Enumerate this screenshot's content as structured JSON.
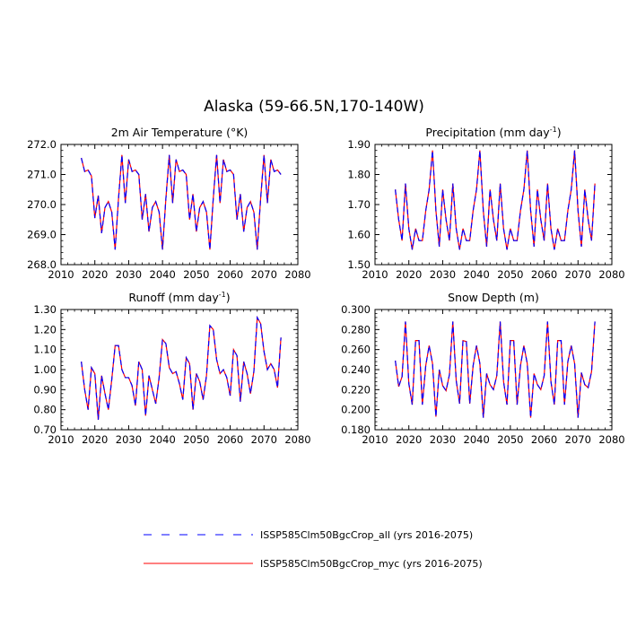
{
  "title": "Alaska (59-66.5N,170-140W)",
  "colors": {
    "series_all": "#0000ff",
    "series_myc": "#ff0000"
  },
  "legend": [
    {
      "label": "ISSP585Clm50BgcCrop_all (yrs 2016-2075)",
      "style": "dashed",
      "color": "#0000ff"
    },
    {
      "label": "ISSP585Clm50BgcCrop_myc (yrs 2016-2075)",
      "style": "solid",
      "color": "#ff0000"
    }
  ],
  "chart_data": [
    {
      "type": "line",
      "title": "2m Air Temperature (°K)",
      "x": [
        2016,
        2017,
        2018,
        2019,
        2020,
        2021,
        2022,
        2023,
        2024,
        2025,
        2026,
        2027,
        2028,
        2029,
        2030,
        2031,
        2032,
        2033,
        2034,
        2035,
        2036,
        2037,
        2038,
        2039,
        2040,
        2041,
        2042,
        2043,
        2044,
        2045,
        2046,
        2047,
        2048,
        2049,
        2050,
        2051,
        2052,
        2053,
        2054,
        2055,
        2056,
        2057,
        2058,
        2059,
        2060,
        2061,
        2062,
        2063,
        2064,
        2065,
        2066,
        2067,
        2068,
        2069,
        2070,
        2071,
        2072,
        2073,
        2074,
        2075
      ],
      "series": [
        {
          "values": [
            271.55,
            271.1,
            271.15,
            270.95,
            269.55,
            270.3,
            269.05,
            269.9,
            270.1,
            269.75,
            268.5,
            270.2,
            271.65,
            270.05,
            271.5,
            271.1,
            271.15,
            271.0,
            269.5,
            270.35,
            269.1,
            269.9,
            270.1,
            269.75,
            268.5,
            270.2,
            271.65,
            270.05,
            271.5,
            271.1,
            271.15,
            271.0,
            269.5,
            270.35,
            269.1,
            269.9,
            270.1,
            269.75,
            268.5,
            270.2,
            271.65,
            270.05,
            271.5,
            271.1,
            271.15,
            271.0,
            269.5,
            270.35,
            269.1,
            269.9,
            270.1,
            269.75,
            268.5,
            270.2,
            271.65,
            270.05,
            271.5,
            271.1,
            271.15,
            271.0
          ]
        }
      ],
      "xlim": [
        2010,
        2080
      ],
      "xticks": [
        "2010",
        "2020",
        "2030",
        "2040",
        "2050",
        "2060",
        "2070",
        "2080"
      ],
      "ylim": [
        268.0,
        272.0
      ],
      "yticks": [
        "268.0",
        "269.0",
        "270.0",
        "271.0",
        "272.0"
      ]
    },
    {
      "type": "line",
      "title": "Precipitation (mm day",
      "title_sup": "-1",
      "title_end": ")",
      "x": [
        2016,
        2017,
        2018,
        2019,
        2020,
        2021,
        2022,
        2023,
        2024,
        2025,
        2026,
        2027,
        2028,
        2029,
        2030,
        2031,
        2032,
        2033,
        2034,
        2035,
        2036,
        2037,
        2038,
        2039,
        2040,
        2041,
        2042,
        2043,
        2044,
        2045,
        2046,
        2047,
        2048,
        2049,
        2050,
        2051,
        2052,
        2053,
        2054,
        2055,
        2056,
        2057,
        2058,
        2059,
        2060,
        2061,
        2062,
        2063,
        2064,
        2065,
        2066,
        2067,
        2068,
        2069,
        2070,
        2071,
        2072,
        2073,
        2074,
        2075
      ],
      "series": [
        {
          "values": [
            1.75,
            1.65,
            1.58,
            1.77,
            1.62,
            1.55,
            1.62,
            1.58,
            1.58,
            1.68,
            1.75,
            1.88,
            1.68,
            1.56,
            1.75,
            1.65,
            1.58,
            1.77,
            1.62,
            1.55,
            1.62,
            1.58,
            1.58,
            1.68,
            1.75,
            1.88,
            1.68,
            1.56,
            1.75,
            1.65,
            1.58,
            1.77,
            1.62,
            1.55,
            1.62,
            1.58,
            1.58,
            1.68,
            1.75,
            1.88,
            1.68,
            1.56,
            1.75,
            1.65,
            1.58,
            1.77,
            1.62,
            1.55,
            1.62,
            1.58,
            1.58,
            1.68,
            1.75,
            1.88,
            1.68,
            1.56,
            1.75,
            1.65,
            1.58,
            1.77
          ]
        }
      ],
      "xlim": [
        2010,
        2080
      ],
      "xticks": [
        "2010",
        "2020",
        "2030",
        "2040",
        "2050",
        "2060",
        "2070",
        "2080"
      ],
      "ylim": [
        1.5,
        1.9
      ],
      "yticks": [
        "1.50",
        "1.60",
        "1.70",
        "1.80",
        "1.90"
      ]
    },
    {
      "type": "line",
      "title": "Runoff (mm day",
      "title_sup": "-1",
      "title_end": ")",
      "x": [
        2016,
        2017,
        2018,
        2019,
        2020,
        2021,
        2022,
        2023,
        2024,
        2025,
        2026,
        2027,
        2028,
        2029,
        2030,
        2031,
        2032,
        2033,
        2034,
        2035,
        2036,
        2037,
        2038,
        2039,
        2040,
        2041,
        2042,
        2043,
        2044,
        2045,
        2046,
        2047,
        2048,
        2049,
        2050,
        2051,
        2052,
        2053,
        2054,
        2055,
        2056,
        2057,
        2058,
        2059,
        2060,
        2061,
        2062,
        2063,
        2064,
        2065,
        2066,
        2067,
        2068,
        2069,
        2070,
        2071,
        2072,
        2073,
        2074,
        2075
      ],
      "series": [
        {
          "values": [
            1.04,
            0.9,
            0.8,
            1.01,
            0.98,
            0.75,
            0.97,
            0.88,
            0.8,
            0.95,
            1.12,
            1.12,
            1.0,
            0.96,
            0.96,
            0.92,
            0.82,
            1.04,
            1.0,
            0.77,
            0.97,
            0.9,
            0.83,
            0.96,
            1.15,
            1.13,
            1.01,
            0.98,
            0.99,
            0.93,
            0.85,
            1.06,
            1.03,
            0.8,
            0.98,
            0.94,
            0.85,
            0.97,
            1.22,
            1.2,
            1.05,
            0.98,
            1.0,
            0.96,
            0.87,
            1.1,
            1.07,
            0.84,
            1.04,
            0.98,
            0.88,
            0.99,
            1.26,
            1.23,
            1.09,
            1.0,
            1.03,
            1.0,
            0.91,
            1.16
          ]
        }
      ],
      "xlim": [
        2010,
        2080
      ],
      "xticks": [
        "2010",
        "2020",
        "2030",
        "2040",
        "2050",
        "2060",
        "2070",
        "2080"
      ],
      "ylim": [
        0.7,
        1.3
      ],
      "yticks": [
        "0.70",
        "0.80",
        "0.90",
        "1.00",
        "1.10",
        "1.20",
        "1.30"
      ]
    },
    {
      "type": "line",
      "title": "Snow Depth (m)",
      "x": [
        2016,
        2017,
        2018,
        2019,
        2020,
        2021,
        2022,
        2023,
        2024,
        2025,
        2026,
        2027,
        2028,
        2029,
        2030,
        2031,
        2032,
        2033,
        2034,
        2035,
        2036,
        2037,
        2038,
        2039,
        2040,
        2041,
        2042,
        2043,
        2044,
        2045,
        2046,
        2047,
        2048,
        2049,
        2050,
        2051,
        2052,
        2053,
        2054,
        2055,
        2056,
        2057,
        2058,
        2059,
        2060,
        2061,
        2062,
        2063,
        2064,
        2065,
        2066,
        2067,
        2068,
        2069,
        2070,
        2071,
        2072,
        2073,
        2074,
        2075
      ],
      "series": [
        {
          "values": [
            0.249,
            0.223,
            0.233,
            0.288,
            0.226,
            0.205,
            0.269,
            0.269,
            0.205,
            0.244,
            0.264,
            0.246,
            0.193,
            0.24,
            0.224,
            0.219,
            0.235,
            0.288,
            0.229,
            0.206,
            0.269,
            0.268,
            0.206,
            0.244,
            0.264,
            0.246,
            0.192,
            0.236,
            0.225,
            0.22,
            0.234,
            0.288,
            0.228,
            0.205,
            0.269,
            0.269,
            0.205,
            0.244,
            0.264,
            0.246,
            0.192,
            0.236,
            0.225,
            0.22,
            0.234,
            0.288,
            0.228,
            0.205,
            0.269,
            0.269,
            0.205,
            0.248,
            0.264,
            0.246,
            0.192,
            0.237,
            0.225,
            0.222,
            0.238,
            0.288
          ]
        }
      ],
      "xlim": [
        2010,
        2080
      ],
      "xticks": [
        "2010",
        "2020",
        "2030",
        "2040",
        "2050",
        "2060",
        "2070",
        "2080"
      ],
      "ylim": [
        0.18,
        0.3
      ],
      "yticks": [
        "0.180",
        "0.200",
        "0.220",
        "0.240",
        "0.260",
        "0.280",
        "0.300"
      ]
    }
  ]
}
